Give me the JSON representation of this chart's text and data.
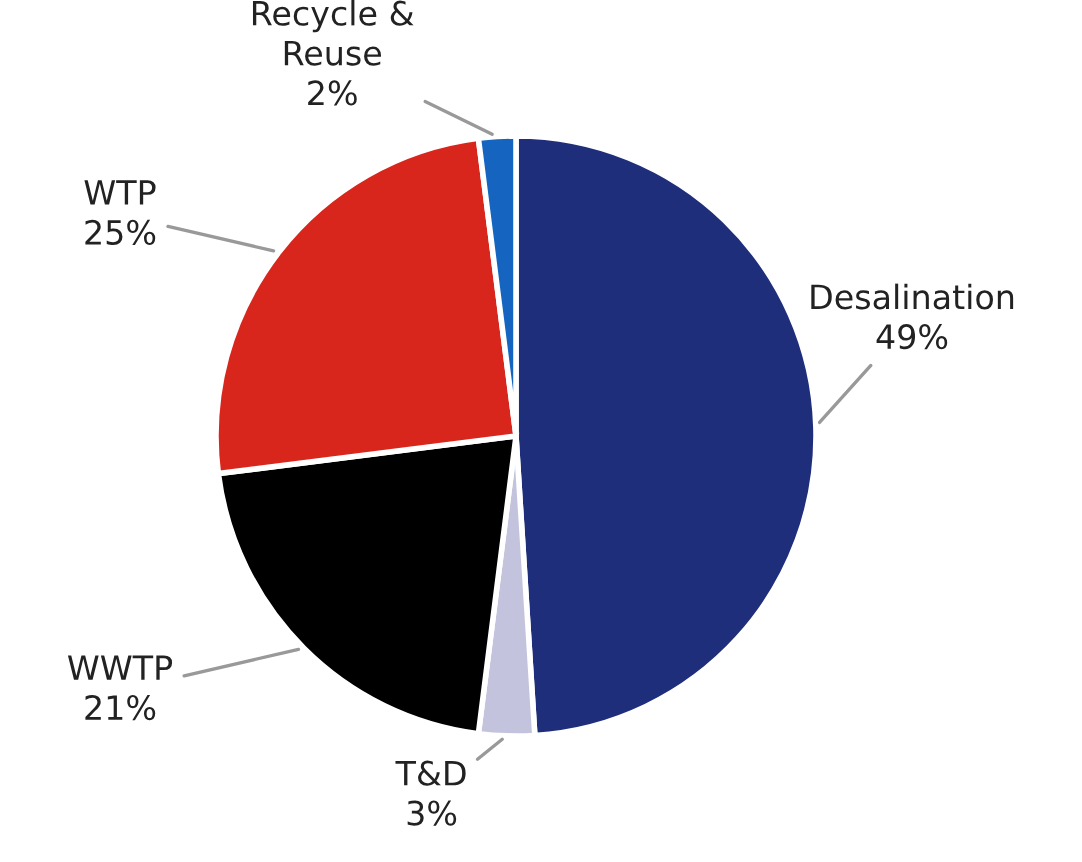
{
  "chart_data": {
    "type": "pie",
    "categories": [
      "Desalination",
      "T&D",
      "WWTP",
      "WTP",
      "Recycle &\nReuse"
    ],
    "values": [
      49,
      3,
      21,
      25,
      2
    ],
    "colors": [
      "#1f2e7a",
      "#c3c3dd",
      "#000000",
      "#d9261c",
      "#1565c0"
    ],
    "value_labels": [
      "49%",
      "3%",
      "21%",
      "25%",
      "2%"
    ],
    "legend": false
  }
}
